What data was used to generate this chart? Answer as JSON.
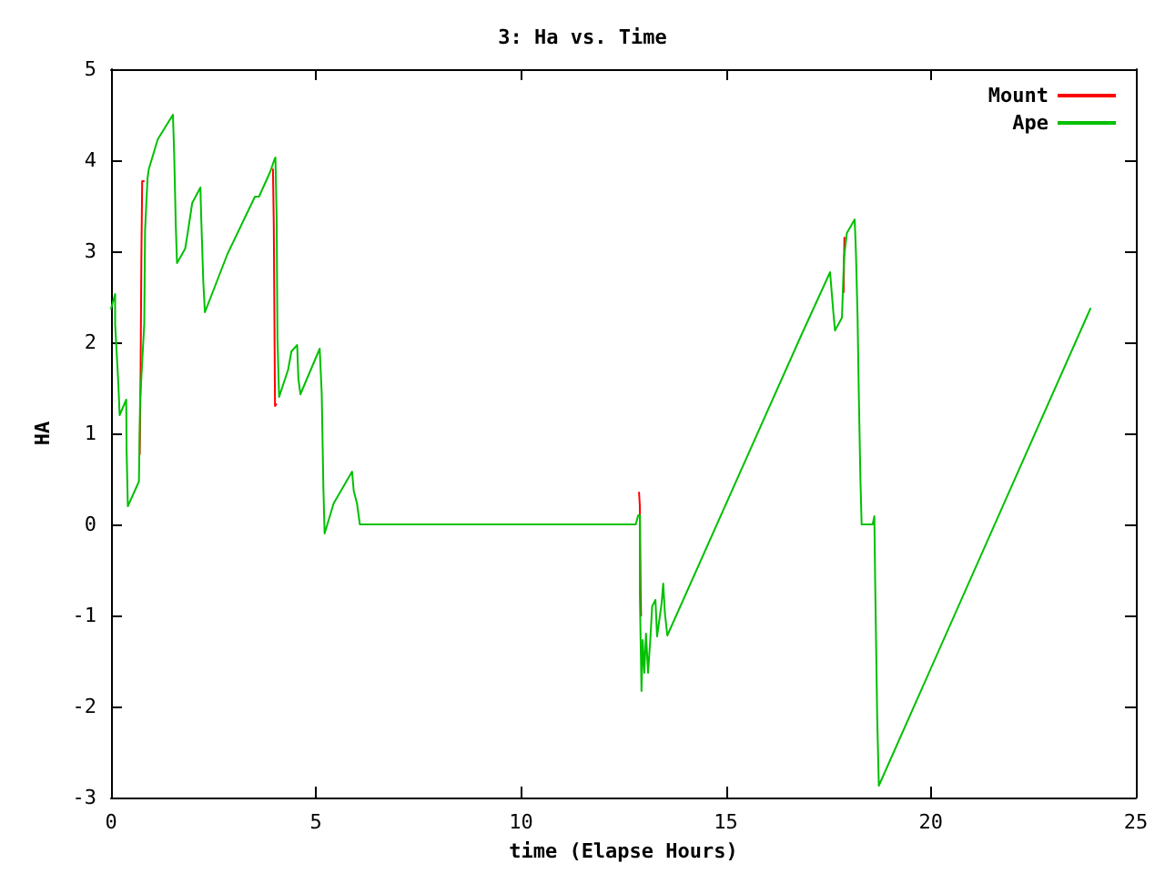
{
  "chart_data": {
    "type": "line",
    "title": "3: Ha vs. Time",
    "xlabel": "time (Elapse Hours)",
    "ylabel": "HA",
    "xlim": [
      0,
      25
    ],
    "xticks": [
      0,
      5,
      10,
      15,
      20,
      25
    ],
    "ylim": [
      -3,
      5
    ],
    "yticks": [
      -3,
      -2,
      -1,
      0,
      1,
      2,
      3,
      4,
      5
    ],
    "grid": false,
    "legend": "top right",
    "marker": "none",
    "line_style": "solid",
    "series": [
      {
        "name": "Mount",
        "color": "#ff0000",
        "x": [
          0.7,
          0.72,
          0.74,
          0.76,
          0.8
        ],
        "values": [
          0.77,
          1.6,
          2.93,
          3.77,
          3.77
        ]
      },
      {
        "color": "#ff0000",
        "x": [
          3.95,
          3.97,
          4.0,
          4.03
        ],
        "values": [
          3.9,
          3.3,
          1.3,
          1.32
        ]
      },
      {
        "color": "#ff0000",
        "x": [
          12.88,
          12.9,
          12.92,
          12.93
        ],
        "values": [
          0.35,
          0.2,
          -0.8,
          -1.0
        ]
      },
      {
        "color": "#ff0000",
        "x": [
          17.87,
          17.89
        ],
        "values": [
          2.55,
          3.15
        ]
      },
      {
        "name": "Ape",
        "color": "#00c000",
        "x": [
          0,
          0.1,
          0.1,
          0.18,
          0.21,
          0.37,
          0.38,
          0.41,
          0.68,
          0.71,
          0.81,
          0.83,
          0.89,
          0.92,
          1.14,
          1.51,
          1.54,
          1.58,
          1.61,
          1.81,
          1.88,
          1.98,
          2.18,
          2.2,
          2.25,
          2.29,
          2.84,
          3.51,
          3.61,
          3.88,
          3.98,
          4.01,
          4.04,
          4.06,
          4.1,
          4.32,
          4.4,
          4.54,
          4.57,
          4.62,
          5.09,
          5.14,
          5.18,
          5.21,
          5.43,
          5.88,
          5.92,
          6.0,
          6.07,
          12.8,
          12.86,
          12.9,
          12.9,
          12.94,
          12.97,
          13.01,
          13.05,
          13.1,
          13.16,
          13.2,
          13.28,
          13.32,
          13.43,
          13.47,
          13.51,
          13.57,
          16.83,
          17.54,
          17.62,
          17.66,
          17.83,
          17.88,
          17.95,
          18.14,
          18.17,
          18.21,
          18.24,
          18.28,
          18.31,
          18.58,
          18.62,
          18.64,
          18.69,
          18.73,
          23.89
        ],
        "values": [
          2.37,
          2.53,
          2.2,
          1.53,
          1.2,
          1.37,
          0.8,
          0.2,
          0.47,
          1.37,
          2.2,
          3.23,
          3.8,
          3.9,
          4.23,
          4.5,
          4.07,
          3.27,
          2.87,
          3.03,
          3.23,
          3.53,
          3.7,
          3.37,
          2.67,
          2.33,
          2.97,
          3.6,
          3.6,
          3.87,
          4.0,
          4.03,
          3.37,
          2.03,
          1.4,
          1.7,
          1.9,
          1.97,
          1.6,
          1.43,
          1.93,
          1.43,
          0.4,
          -0.1,
          0.23,
          0.58,
          0.37,
          0.23,
          0,
          0,
          0.1,
          0.1,
          -0.77,
          -1.83,
          -1.27,
          -1.63,
          -1.2,
          -1.63,
          -1.23,
          -0.9,
          -0.83,
          -1.23,
          -0.87,
          -0.65,
          -0.97,
          -1.22,
          2.07,
          2.77,
          2.33,
          2.13,
          2.27,
          2.93,
          3.2,
          3.35,
          3.0,
          2.3,
          1.47,
          0.5,
          0,
          0,
          0.09,
          -0.63,
          -2.13,
          -2.87,
          2.37
        ]
      }
    ]
  }
}
